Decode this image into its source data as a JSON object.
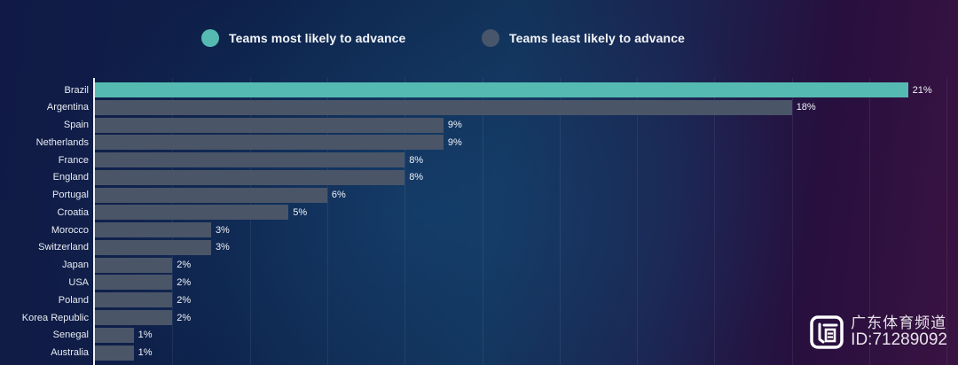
{
  "legend": {
    "items": [
      {
        "label": "Teams most likely to advance",
        "color": "#55bab1"
      },
      {
        "label": "Teams least likely to advance",
        "color": "#47566b"
      }
    ]
  },
  "chart_data": {
    "type": "bar",
    "orientation": "horizontal",
    "categories": [
      "Brazil",
      "Argentina",
      "Spain",
      "Netherlands",
      "France",
      "England",
      "Portugal",
      "Croatia",
      "Morocco",
      "Switzerland",
      "Japan",
      "USA",
      "Poland",
      "Korea Republic",
      "Senegal",
      "Australia"
    ],
    "values": [
      21,
      18,
      9,
      9,
      8,
      8,
      6,
      5,
      3,
      3,
      2,
      2,
      2,
      2,
      1,
      1
    ],
    "value_labels": [
      "21%",
      "18%",
      "9%",
      "9%",
      "8%",
      "8%",
      "6%",
      "5%",
      "3%",
      "3%",
      "2%",
      "2%",
      "2%",
      "2%",
      "1%",
      "1%"
    ],
    "unit": "%",
    "title": "",
    "xlabel": "",
    "ylabel": "",
    "xlim": [
      0,
      22
    ],
    "gridline_interval": 2,
    "grid": true,
    "legend_position": "top",
    "highlight_index": 0,
    "highlight_color": "#55bab1",
    "bar_color": "#4a5568"
  },
  "watermark": {
    "channel": "广东体育频道",
    "id_text": "ID:71289092",
    "logo": "tv-station-logo"
  }
}
